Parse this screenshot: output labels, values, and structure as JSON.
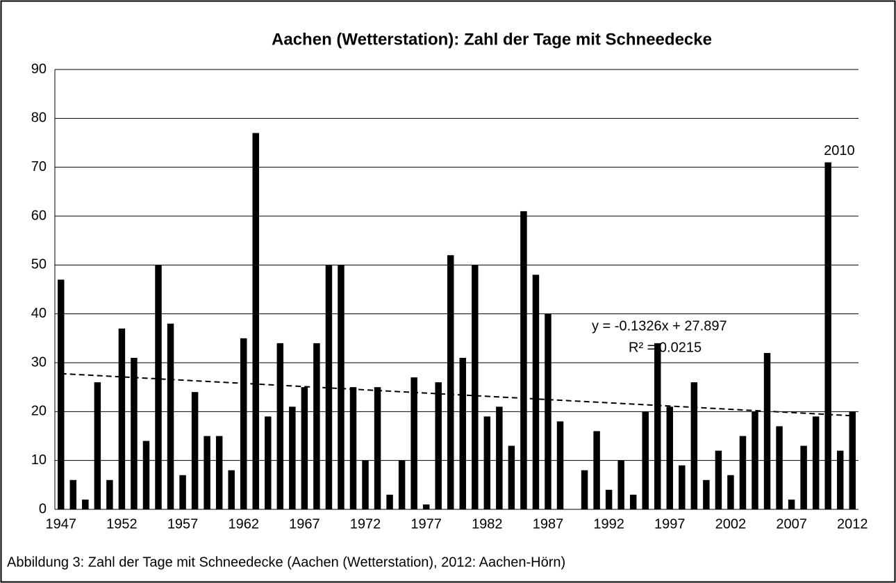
{
  "chart_data": {
    "type": "bar",
    "title": "Aachen (Wetterstation): Zahl der Tage mit Schneedecke",
    "caption": "Abbildung 3: Zahl der Tage mit Schneedecke (Aachen (Wetterstation), 2012: Aachen-Hörn)",
    "categories": [
      "1947",
      null,
      null,
      null,
      null,
      "1952",
      null,
      null,
      null,
      null,
      "1957",
      null,
      null,
      null,
      null,
      "1962",
      null,
      null,
      null,
      null,
      "1967",
      null,
      null,
      null,
      null,
      "1972",
      null,
      null,
      null,
      null,
      "1977",
      null,
      null,
      null,
      null,
      "1982",
      null,
      null,
      null,
      null,
      "1987",
      null,
      null,
      null,
      null,
      "1992",
      null,
      null,
      null,
      null,
      "1997",
      null,
      null,
      null,
      null,
      "2002",
      null,
      null,
      null,
      null,
      "2007",
      null,
      null,
      null,
      null,
      "2012"
    ],
    "values": [
      47,
      6,
      2,
      26,
      6,
      37,
      31,
      14,
      50,
      38,
      7,
      24,
      15,
      15,
      8,
      35,
      77,
      19,
      34,
      21,
      25,
      34,
      50,
      50,
      25,
      10,
      25,
      3,
      10,
      27,
      1,
      26,
      52,
      31,
      50,
      19,
      21,
      13,
      61,
      48,
      40,
      18,
      0,
      8,
      16,
      4,
      10,
      3,
      20,
      34,
      21,
      9,
      26,
      6,
      12,
      7,
      15,
      20,
      32,
      17,
      2,
      13,
      19,
      71,
      12,
      20
    ],
    "color": "#000000",
    "annotation": {
      "text": "2010",
      "index": 63
    },
    "trendline": {
      "equation": "y = -0.1326x + 27.897",
      "r_squared": "R² = 0.0215",
      "slope": -0.1326,
      "intercept": 27.897
    },
    "ylim": [
      0,
      90
    ],
    "yticks": [
      0,
      10,
      20,
      30,
      40,
      50,
      60,
      70,
      80,
      90
    ],
    "grid": true
  }
}
